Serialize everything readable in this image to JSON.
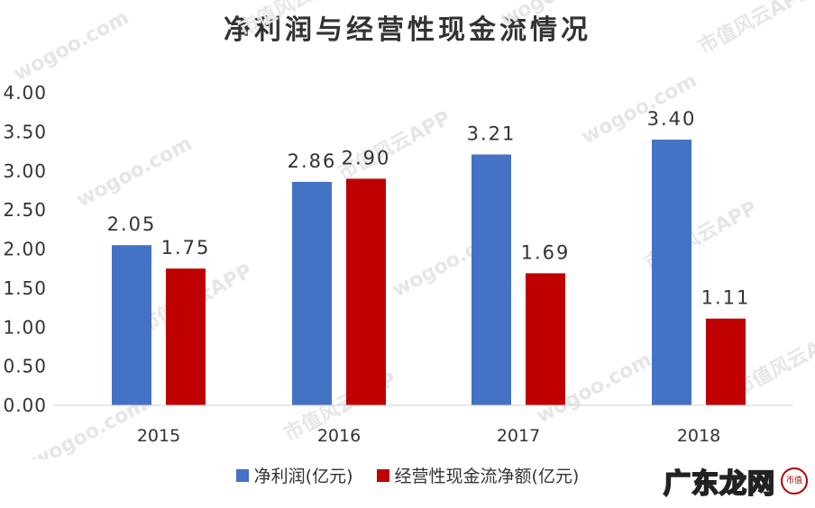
{
  "chart_data": {
    "type": "bar",
    "title": "净利润与经营性现金流情况",
    "categories": [
      "2015",
      "2016",
      "2017",
      "2018"
    ],
    "series": [
      {
        "name": "净利润(亿元)",
        "color": "#4472C4",
        "values": [
          2.05,
          2.86,
          3.21,
          3.4
        ],
        "labels": [
          "2.05",
          "2.86",
          "3.21",
          "3.40"
        ]
      },
      {
        "name": "经营性现金流净额(亿元)",
        "color": "#C00000",
        "values": [
          1.75,
          2.9,
          1.69,
          1.11
        ],
        "labels": [
          "1.75",
          "2.90",
          "1.69",
          "1.11"
        ]
      }
    ],
    "ylim": [
      0,
      4.0
    ],
    "ytick_labels": [
      "0.00",
      "0.50",
      "1.00",
      "1.50",
      "2.00",
      "2.50",
      "3.00",
      "3.50",
      "4.00"
    ],
    "xlabel": "",
    "ylabel": "",
    "grid": false,
    "legend_position": "bottom"
  },
  "watermark": {
    "text": "市值风云APP",
    "site": "wogoo.com"
  },
  "logo": {
    "text": "广东龙网",
    "mark": "市值"
  }
}
